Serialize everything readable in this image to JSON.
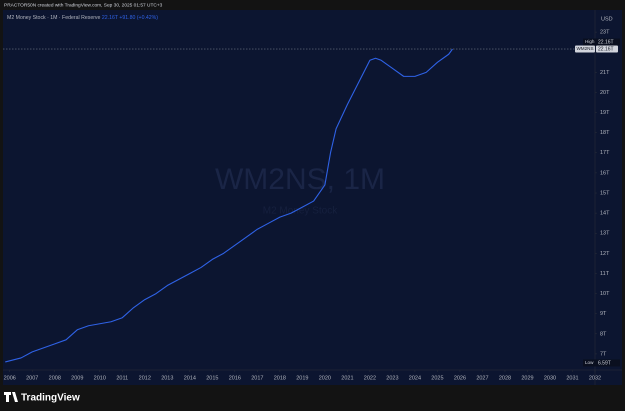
{
  "header": "PRACTOR50N created with TradingView.com, Sep 30, 2025 01:57 UTC+3",
  "footer": "TradingView",
  "chart_data": {
    "type": "line",
    "legend_title": "M2 Money Stock · 1M · Federal Reserve",
    "legend_value": "22.16T",
    "legend_change": "+91.80 (+0.42%)",
    "watermark": "WM2NS, 1M",
    "watermark_subtitle": "M2 Money Stock",
    "currency": "USD",
    "high_label": "High",
    "high_value": "22.16T",
    "low_label": "Low",
    "low_value": "6.59T",
    "x": [
      2005.8,
      2006.5,
      2007.0,
      2007.5,
      2008.0,
      2008.5,
      2009.0,
      2009.5,
      2010.0,
      2010.5,
      2011.0,
      2011.5,
      2012.0,
      2012.5,
      2013.0,
      2013.5,
      2014.0,
      2014.5,
      2015.0,
      2015.5,
      2016.0,
      2016.5,
      2017.0,
      2017.5,
      2018.0,
      2018.5,
      2019.0,
      2019.5,
      2020.0,
      2020.25,
      2020.5,
      2021.0,
      2021.5,
      2022.0,
      2022.25,
      2022.5,
      2023.0,
      2023.5,
      2024.0,
      2024.5,
      2025.0,
      2025.5,
      2025.67
    ],
    "series": [
      {
        "name": "WM2NS",
        "color": "#2f62e6",
        "values": [
          6.6,
          6.8,
          7.1,
          7.3,
          7.5,
          7.7,
          8.2,
          8.4,
          8.5,
          8.6,
          8.8,
          9.3,
          9.7,
          10.0,
          10.4,
          10.7,
          11.0,
          11.3,
          11.7,
          12.0,
          12.4,
          12.8,
          13.2,
          13.5,
          13.8,
          14.0,
          14.3,
          14.6,
          15.4,
          17.0,
          18.2,
          19.4,
          20.5,
          21.6,
          21.7,
          21.6,
          21.2,
          20.8,
          20.8,
          21.0,
          21.5,
          21.9,
          22.16
        ]
      }
    ],
    "xlim": [
      2005.7,
      2032.0
    ],
    "ylim": [
      6.2,
      24.1
    ],
    "xticks": [
      2006,
      2007,
      2008,
      2009,
      2010,
      2011,
      2012,
      2013,
      2014,
      2015,
      2016,
      2017,
      2018,
      2019,
      2020,
      2021,
      2022,
      2023,
      2024,
      2025,
      2026,
      2027,
      2028,
      2029,
      2030,
      2031,
      2032
    ],
    "yticks": [
      {
        "value": 7,
        "label": "7T"
      },
      {
        "value": 8,
        "label": "8T"
      },
      {
        "value": 9,
        "label": "9T"
      },
      {
        "value": 10,
        "label": "10T"
      },
      {
        "value": 11,
        "label": "11T"
      },
      {
        "value": 12,
        "label": "12T"
      },
      {
        "value": 13,
        "label": "13T"
      },
      {
        "value": 14,
        "label": "14T"
      },
      {
        "value": 15,
        "label": "15T"
      },
      {
        "value": 16,
        "label": "16T"
      },
      {
        "value": 17,
        "label": "17T"
      },
      {
        "value": 18,
        "label": "18T"
      },
      {
        "value": 19,
        "label": "19T"
      },
      {
        "value": 20,
        "label": "20T"
      },
      {
        "value": 21,
        "label": "21T"
      },
      {
        "value": 23,
        "label": "23T"
      }
    ],
    "grid": false
  }
}
